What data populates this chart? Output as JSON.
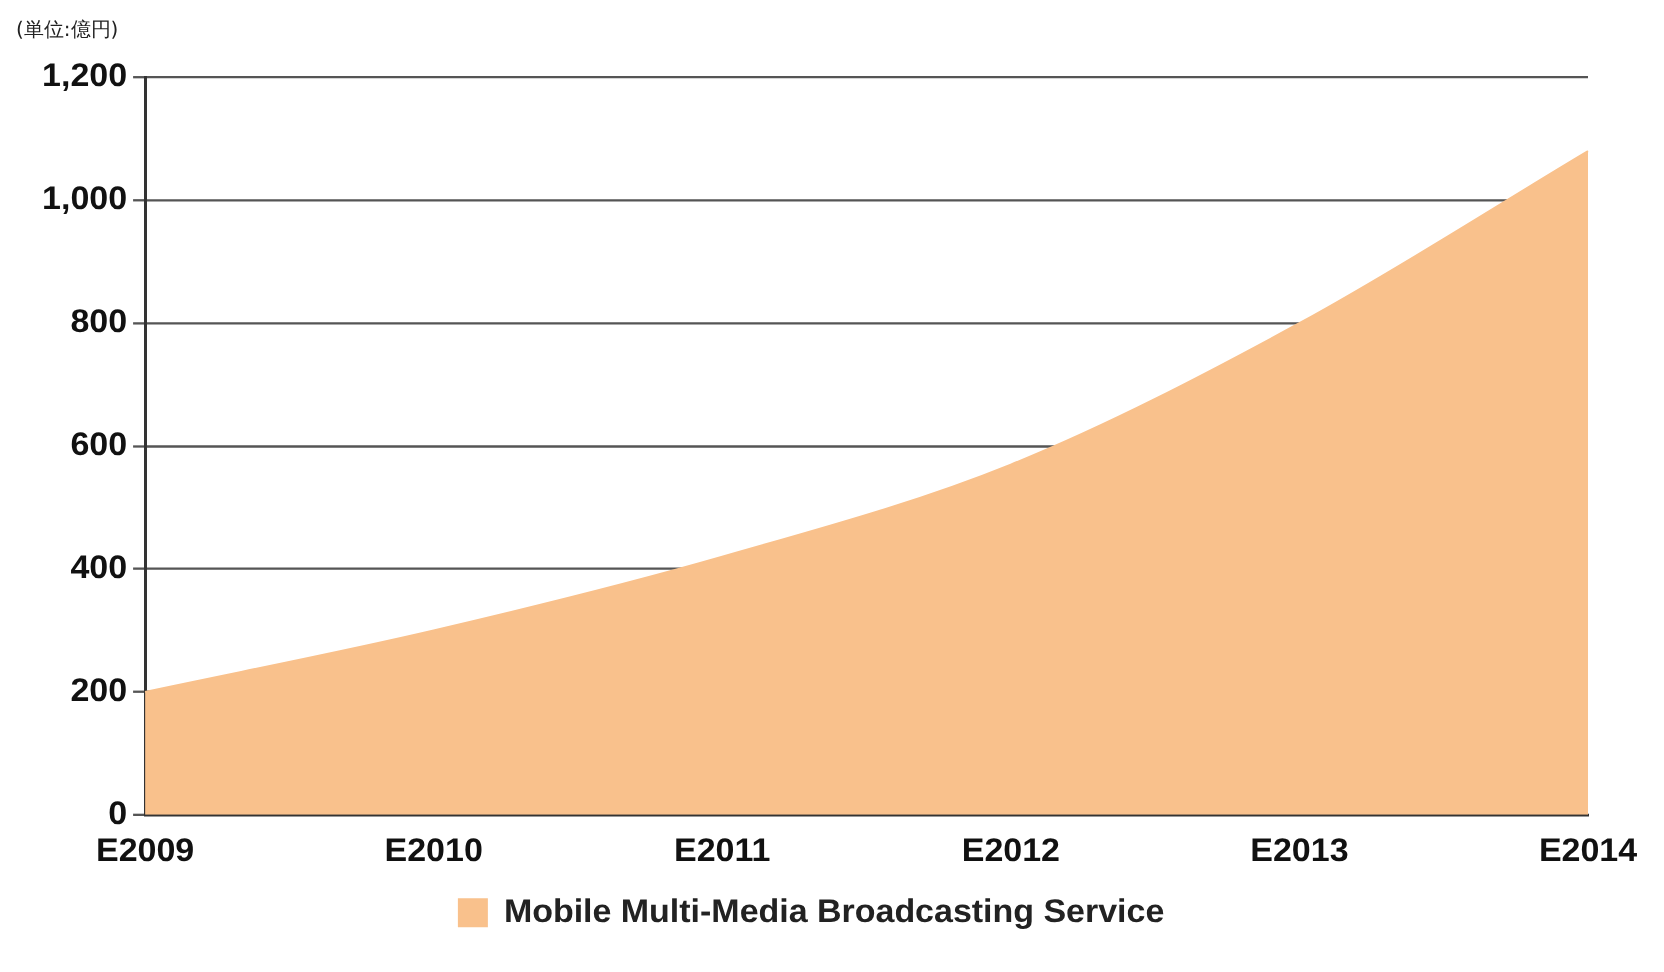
{
  "chart_data": {
    "type": "area",
    "annotations": [
      "(単位:億円)"
    ],
    "categories": [
      "E2009",
      "E2010",
      "E2011",
      "E2012",
      "E2013",
      "E2014"
    ],
    "series": [
      {
        "name": "Mobile Multi-Media Broadcasting Service",
        "color": "#f9c18c",
        "values": [
          200,
          300,
          420,
          570,
          800,
          1080
        ]
      }
    ],
    "ylim": [
      0,
      1200
    ],
    "yticks": [
      0,
      200,
      400,
      600,
      800,
      {
        "value": 1000,
        "label": "1,000"
      },
      {
        "value": 1200,
        "label": "1,200"
      }
    ],
    "grid": "y",
    "legend": "bottom"
  }
}
